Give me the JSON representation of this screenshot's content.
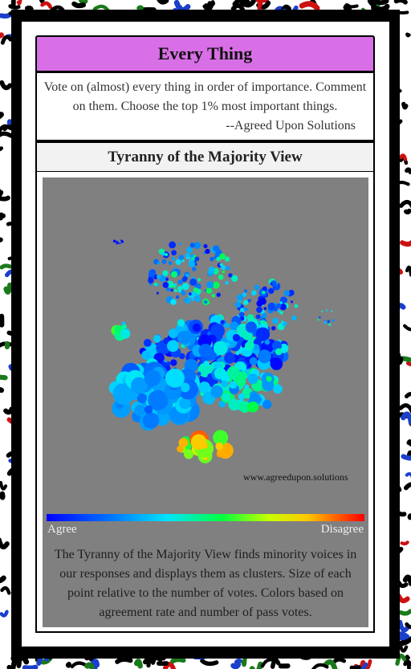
{
  "header": {
    "title": "Every Thing"
  },
  "description": {
    "text": "Vote on (almost) every thing in order of importance. Comment on them. Choose the top 1% most important things.",
    "attribution": "--Agreed Upon Solutions"
  },
  "view": {
    "title": "Tyranny of the Majority View"
  },
  "graph": {
    "watermark": "www.agreedupon.solutions",
    "scale_left": "Agree",
    "scale_right": "Disagree",
    "caption": "The Tyranny of the Majority View finds minority voices in our responses and displays them as clusters. Size of each point relative to the number of votes. Colors based on agreement rate and number of pass votes."
  },
  "colors": {
    "header_bg": "#d86fe6",
    "graph_bg": "#808080",
    "frame": "#000000",
    "border_pattern": [
      "#000000",
      "#cc1111",
      "#1a7a1a",
      "#1a3fcc"
    ]
  }
}
